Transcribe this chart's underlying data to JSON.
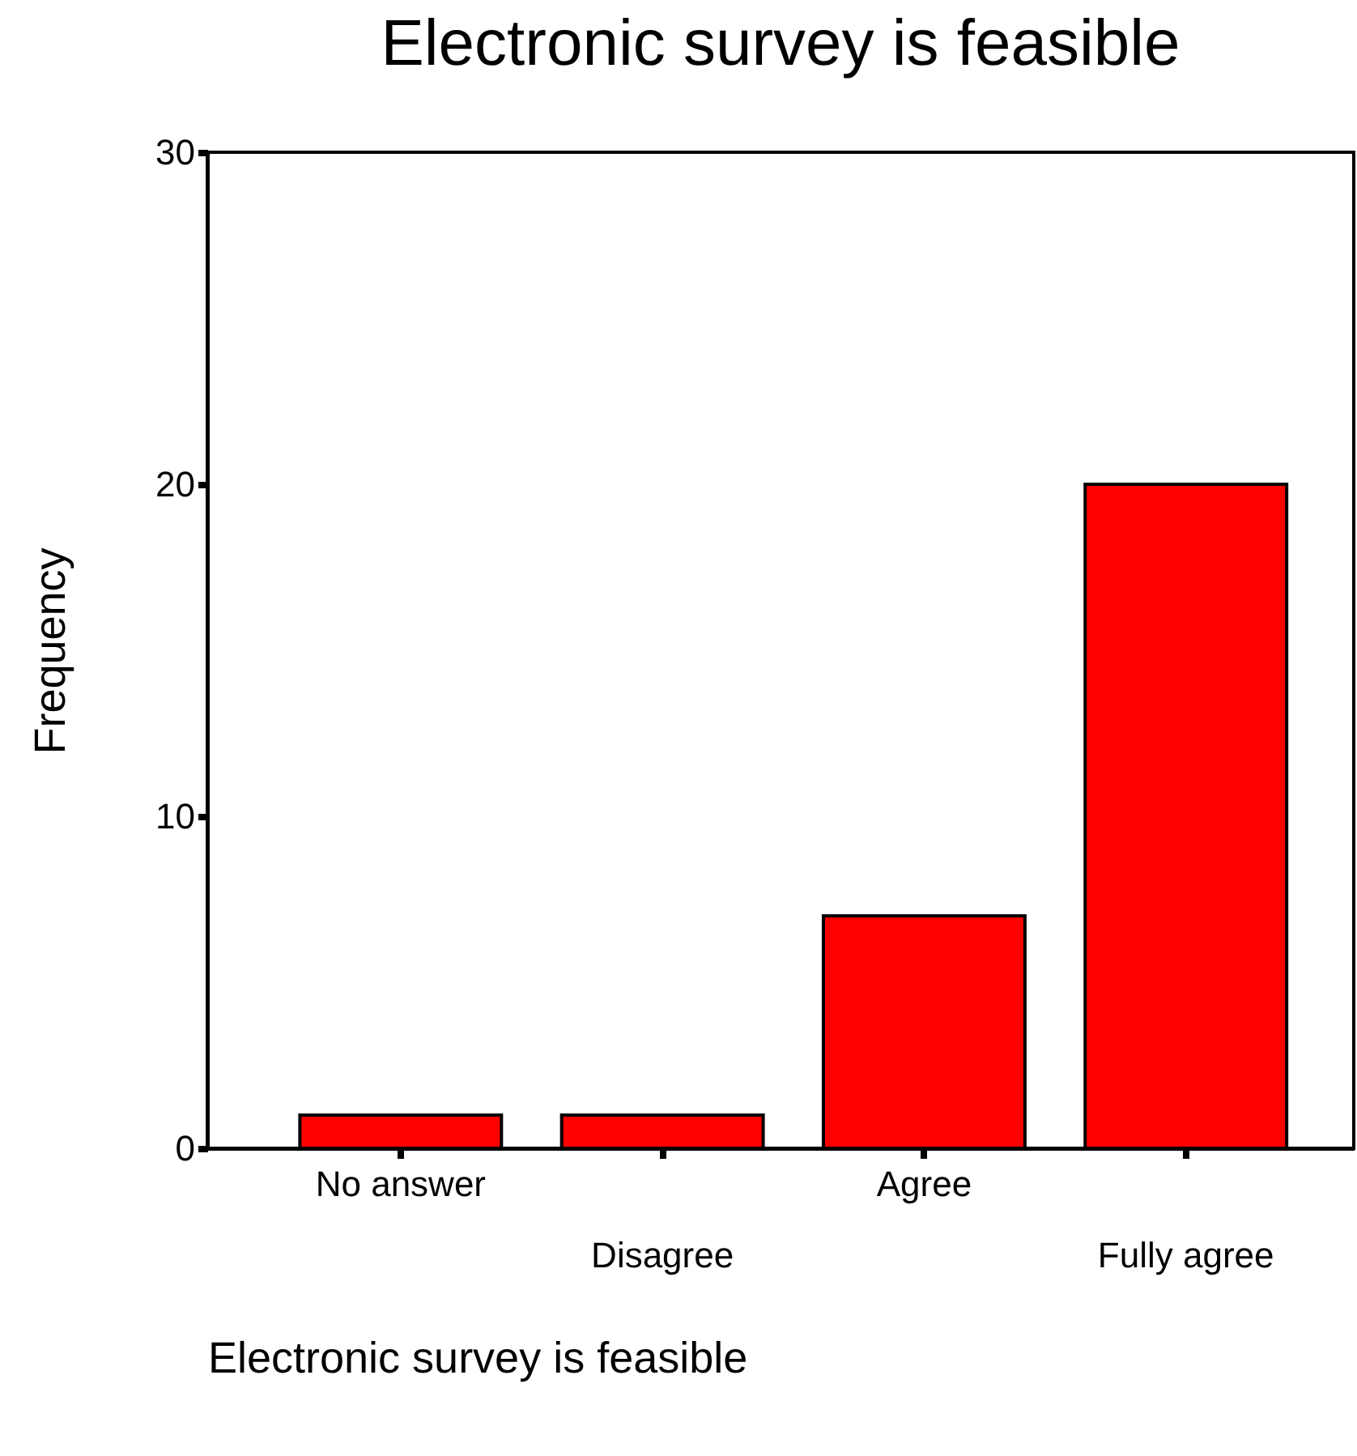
{
  "chart_data": {
    "type": "bar",
    "title": "Electronic survey is feasible",
    "xlabel": "Electronic survey is feasible",
    "ylabel": "Frequency",
    "categories": [
      "No answer",
      "Disagree",
      "Agree",
      "Fully agree"
    ],
    "values": [
      1,
      1,
      7,
      20
    ],
    "color": "#ff0000",
    "ylim": [
      0,
      30
    ],
    "yticks": [
      0,
      10,
      20,
      30
    ],
    "grid": false
  }
}
